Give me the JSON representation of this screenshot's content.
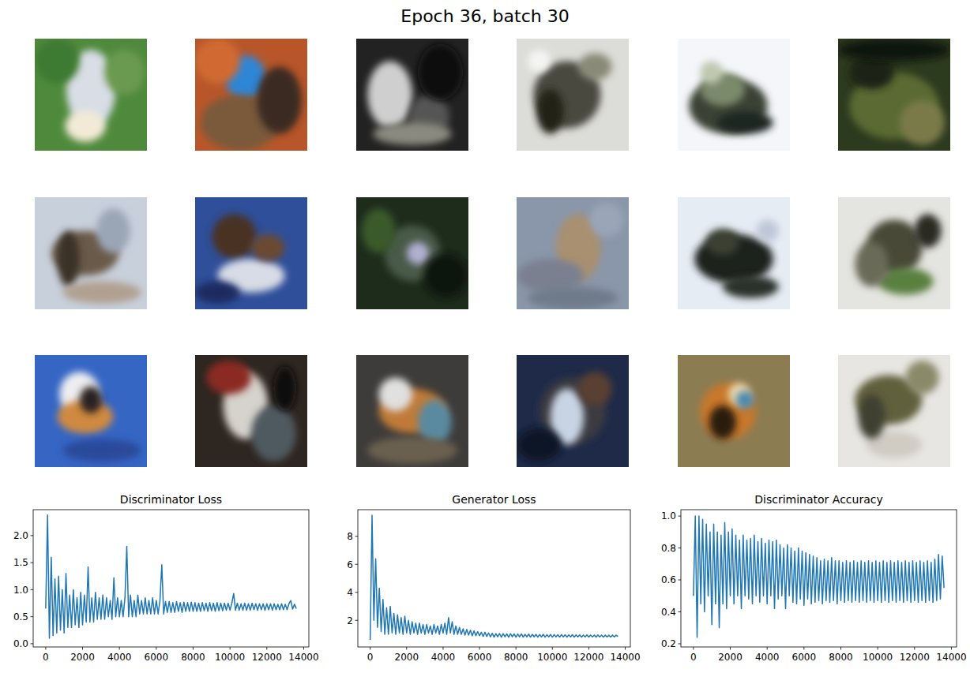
{
  "title": "Epoch 36, batch 30",
  "chart_data": [
    {
      "type": "line",
      "title": "Discriminator Loss",
      "color": "#1f77b4",
      "xlim": [
        -680,
        14280
      ],
      "xticks": [
        0,
        2000,
        4000,
        6000,
        8000,
        10000,
        12000,
        14000
      ],
      "ylim": [
        -0.06,
        2.48
      ],
      "yticks": [
        {
          "value": 0,
          "label": "0.0"
        },
        {
          "value": 0.5,
          "label": "0.5"
        },
        {
          "value": 1,
          "label": "1.0"
        },
        {
          "value": 1.5,
          "label": "1.5"
        },
        {
          "value": 2,
          "label": "2.0"
        }
      ],
      "x": [
        0,
        100,
        200,
        300,
        400,
        500,
        600,
        700,
        800,
        900,
        1000,
        1100,
        1200,
        1300,
        1400,
        1500,
        1600,
        1700,
        1800,
        1900,
        2000,
        2100,
        2200,
        2300,
        2400,
        2500,
        2600,
        2700,
        2800,
        2900,
        3000,
        3100,
        3200,
        3300,
        3400,
        3500,
        3600,
        3700,
        3800,
        3900,
        4000,
        4100,
        4200,
        4300,
        4400,
        4500,
        4600,
        4700,
        4800,
        4900,
        5000,
        5100,
        5200,
        5300,
        5400,
        5500,
        5600,
        5700,
        5800,
        5900,
        6000,
        6100,
        6200,
        6300,
        6400,
        6500,
        6600,
        6700,
        6800,
        6900,
        7000,
        7100,
        7200,
        7300,
        7400,
        7500,
        7600,
        7700,
        7800,
        7900,
        8000,
        8100,
        8200,
        8300,
        8400,
        8500,
        8600,
        8700,
        8800,
        8900,
        9000,
        9100,
        9200,
        9300,
        9400,
        9500,
        9600,
        9700,
        9800,
        9900,
        10000,
        10100,
        10200,
        10300,
        10400,
        10500,
        10600,
        10700,
        10800,
        10900,
        11000,
        11100,
        11200,
        11300,
        11400,
        11500,
        11600,
        11700,
        11800,
        11900,
        12000,
        12100,
        12200,
        12300,
        12400,
        12500,
        12600,
        12700,
        12800,
        12900,
        13000,
        13100,
        13200,
        13300,
        13400,
        13500,
        13600
      ],
      "values": [
        0.65,
        2.38,
        0.1,
        1.6,
        0.15,
        1.2,
        0.2,
        1.25,
        0.25,
        1.0,
        0.2,
        1.3,
        0.3,
        0.9,
        0.3,
        1.0,
        0.35,
        0.85,
        0.3,
        0.95,
        0.35,
        0.9,
        0.4,
        1.42,
        0.4,
        0.85,
        0.4,
        0.95,
        0.45,
        0.85,
        0.45,
        0.9,
        0.45,
        0.85,
        0.5,
        0.8,
        0.45,
        1.22,
        0.5,
        0.85,
        0.5,
        0.8,
        0.5,
        0.85,
        1.8,
        0.5,
        0.9,
        0.5,
        0.8,
        0.5,
        0.9,
        0.55,
        0.8,
        0.55,
        0.85,
        0.55,
        0.8,
        0.55,
        0.85,
        0.55,
        0.8,
        0.55,
        0.8,
        1.46,
        0.55,
        0.78,
        0.58,
        0.78,
        0.58,
        0.76,
        0.58,
        0.78,
        0.6,
        0.76,
        0.58,
        0.77,
        0.6,
        0.76,
        0.6,
        0.77,
        0.6,
        0.76,
        0.6,
        0.75,
        0.6,
        0.76,
        0.61,
        0.75,
        0.6,
        0.76,
        0.61,
        0.75,
        0.6,
        0.76,
        0.61,
        0.75,
        0.61,
        0.75,
        0.62,
        0.75,
        0.62,
        0.75,
        0.93,
        0.62,
        0.75,
        0.62,
        0.74,
        0.62,
        0.75,
        0.62,
        0.74,
        0.62,
        0.75,
        0.63,
        0.74,
        0.62,
        0.74,
        0.63,
        0.74,
        0.62,
        0.74,
        0.63,
        0.74,
        0.62,
        0.74,
        0.63,
        0.73,
        0.63,
        0.74,
        0.63,
        0.73,
        0.63,
        0.74,
        0.8,
        0.64,
        0.73,
        0.65
      ]
    },
    {
      "type": "line",
      "title": "Generator Loss",
      "color": "#1f77b4",
      "xlim": [
        -680,
        14280
      ],
      "xticks": [
        0,
        2000,
        4000,
        6000,
        8000,
        10000,
        12000,
        14000
      ],
      "ylim": [
        0.1,
        9.9
      ],
      "yticks": [
        2,
        4,
        6,
        8
      ],
      "x": [
        0,
        100,
        200,
        300,
        400,
        500,
        600,
        700,
        800,
        900,
        1000,
        1100,
        1200,
        1300,
        1400,
        1500,
        1600,
        1700,
        1800,
        1900,
        2000,
        2100,
        2200,
        2300,
        2400,
        2500,
        2600,
        2700,
        2800,
        2900,
        3000,
        3100,
        3200,
        3300,
        3400,
        3500,
        3600,
        3700,
        3800,
        3900,
        4000,
        4100,
        4200,
        4300,
        4400,
        4500,
        4600,
        4700,
        4800,
        4900,
        5000,
        5100,
        5200,
        5300,
        5400,
        5500,
        5600,
        5700,
        5800,
        5900,
        6000,
        6100,
        6200,
        6300,
        6400,
        6500,
        6600,
        6700,
        6800,
        6900,
        7000,
        7100,
        7200,
        7300,
        7400,
        7500,
        7600,
        7700,
        7800,
        7900,
        8000,
        8100,
        8200,
        8300,
        8400,
        8500,
        8600,
        8700,
        8800,
        8900,
        9000,
        9100,
        9200,
        9300,
        9400,
        9500,
        9600,
        9700,
        9800,
        9900,
        10000,
        10100,
        10200,
        10300,
        10400,
        10500,
        10600,
        10700,
        10800,
        10900,
        11000,
        11100,
        11200,
        11300,
        11400,
        11500,
        11600,
        11700,
        11800,
        11900,
        12000,
        12100,
        12200,
        12300,
        12400,
        12500,
        12600,
        12700,
        12800,
        12900,
        13000,
        13100,
        13200,
        13300,
        13400,
        13500,
        13600
      ],
      "values": [
        0.6,
        9.5,
        2.0,
        6.4,
        1.5,
        4.3,
        1.2,
        3.5,
        1.0,
        2.9,
        1.0,
        3.0,
        1.1,
        2.5,
        1.0,
        2.4,
        1.1,
        2.2,
        1.0,
        2.3,
        1.1,
        2.0,
        1.0,
        1.9,
        1.1,
        1.8,
        1.0,
        1.8,
        1.1,
        1.7,
        1.0,
        1.7,
        1.1,
        1.6,
        1.0,
        1.7,
        1.1,
        1.6,
        1.0,
        1.7,
        1.1,
        1.8,
        1.0,
        2.2,
        1.1,
        1.9,
        1.0,
        1.6,
        1.0,
        1.5,
        1.0,
        1.4,
        0.95,
        1.35,
        0.95,
        1.3,
        0.9,
        1.25,
        0.9,
        1.2,
        0.9,
        1.15,
        0.85,
        1.15,
        0.85,
        1.1,
        0.82,
        1.08,
        0.8,
        1.05,
        0.82,
        1.06,
        0.8,
        1.05,
        0.82,
        1.04,
        0.8,
        1.05,
        0.82,
        1.03,
        0.8,
        1.02,
        0.82,
        1.03,
        0.8,
        1.0,
        0.82,
        1.02,
        0.8,
        1.0,
        0.82,
        1.0,
        0.8,
        0.99,
        0.82,
        1.0,
        0.8,
        0.98,
        0.82,
        0.99,
        0.8,
        0.98,
        0.82,
        0.97,
        0.8,
        0.98,
        0.82,
        0.97,
        0.8,
        0.96,
        0.82,
        0.97,
        0.8,
        0.96,
        0.82,
        0.96,
        0.8,
        0.95,
        0.82,
        0.96,
        0.8,
        0.95,
        0.82,
        0.95,
        0.8,
        0.96,
        0.82,
        0.95,
        0.8,
        0.95,
        0.82,
        0.94,
        0.8,
        0.95,
        0.82,
        0.94,
        0.85
      ]
    },
    {
      "type": "line",
      "title": "Discriminator Accuracy",
      "color": "#1f77b4",
      "xlim": [
        -680,
        14280
      ],
      "xticks": [
        0,
        2000,
        4000,
        6000,
        8000,
        10000,
        12000,
        14000
      ],
      "ylim": [
        0.18,
        1.04
      ],
      "yticks": [
        0.2,
        0.4,
        0.6,
        0.8,
        {
          "value": 1,
          "label": "1.0"
        }
      ],
      "x": [
        0,
        100,
        200,
        300,
        400,
        500,
        600,
        700,
        800,
        900,
        1000,
        1100,
        1200,
        1300,
        1400,
        1500,
        1600,
        1700,
        1800,
        1900,
        2000,
        2100,
        2200,
        2300,
        2400,
        2500,
        2600,
        2700,
        2800,
        2900,
        3000,
        3100,
        3200,
        3300,
        3400,
        3500,
        3600,
        3700,
        3800,
        3900,
        4000,
        4100,
        4200,
        4300,
        4400,
        4500,
        4600,
        4700,
        4800,
        4900,
        5000,
        5100,
        5200,
        5300,
        5400,
        5500,
        5600,
        5700,
        5800,
        5900,
        6000,
        6100,
        6200,
        6300,
        6400,
        6500,
        6600,
        6700,
        6800,
        6900,
        7000,
        7100,
        7200,
        7300,
        7400,
        7500,
        7600,
        7700,
        7800,
        7900,
        8000,
        8100,
        8200,
        8300,
        8400,
        8500,
        8600,
        8700,
        8800,
        8900,
        9000,
        9100,
        9200,
        9300,
        9400,
        9500,
        9600,
        9700,
        9800,
        9900,
        10000,
        10100,
        10200,
        10300,
        10400,
        10500,
        10600,
        10700,
        10800,
        10900,
        11000,
        11100,
        11200,
        11300,
        11400,
        11500,
        11600,
        11700,
        11800,
        11900,
        12000,
        12100,
        12200,
        12300,
        12400,
        12500,
        12600,
        12700,
        12800,
        12900,
        13000,
        13100,
        13200,
        13300,
        13400,
        13500,
        13600
      ],
      "values": [
        0.5,
        1.0,
        0.24,
        1.0,
        0.45,
        0.98,
        0.4,
        0.95,
        0.5,
        0.9,
        0.32,
        0.95,
        0.45,
        0.9,
        0.3,
        0.88,
        0.45,
        0.96,
        0.42,
        0.9,
        0.5,
        0.92,
        0.45,
        0.88,
        0.5,
        0.85,
        0.42,
        0.88,
        0.5,
        0.85,
        0.48,
        0.86,
        0.45,
        0.88,
        0.5,
        0.84,
        0.46,
        0.86,
        0.5,
        0.83,
        0.45,
        0.85,
        0.5,
        0.84,
        0.42,
        0.85,
        0.48,
        0.82,
        0.5,
        0.8,
        0.42,
        0.82,
        0.5,
        0.8,
        0.46,
        0.78,
        0.45,
        0.8,
        0.48,
        0.78,
        0.44,
        0.77,
        0.48,
        0.76,
        0.45,
        0.75,
        0.46,
        0.74,
        0.47,
        0.72,
        0.45,
        0.73,
        0.47,
        0.72,
        0.46,
        0.74,
        0.47,
        0.72,
        0.45,
        0.72,
        0.47,
        0.71,
        0.46,
        0.72,
        0.47,
        0.71,
        0.46,
        0.72,
        0.47,
        0.71,
        0.46,
        0.72,
        0.47,
        0.71,
        0.46,
        0.72,
        0.47,
        0.71,
        0.46,
        0.72,
        0.47,
        0.71,
        0.46,
        0.72,
        0.47,
        0.71,
        0.46,
        0.72,
        0.47,
        0.71,
        0.46,
        0.72,
        0.47,
        0.71,
        0.46,
        0.72,
        0.47,
        0.71,
        0.46,
        0.72,
        0.47,
        0.71,
        0.46,
        0.72,
        0.47,
        0.71,
        0.46,
        0.72,
        0.47,
        0.71,
        0.46,
        0.73,
        0.47,
        0.76,
        0.48,
        0.75,
        0.55
      ]
    }
  ]
}
